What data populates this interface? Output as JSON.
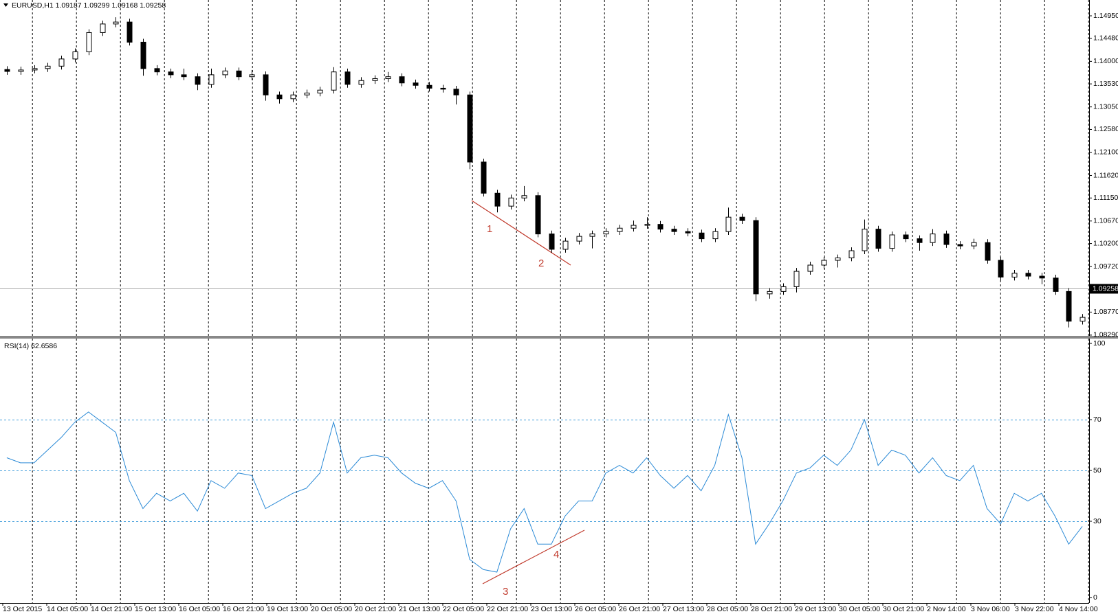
{
  "chart_data": [
    {
      "type": "candlestick",
      "title": "EURUSD,H1  1.09187 1.09299 1.09168 1.09258",
      "open": [
        1.1383,
        1.1379,
        1.1382,
        1.1385,
        1.139,
        1.1405,
        1.142,
        1.146,
        1.1478,
        1.1482,
        1.144,
        1.1385,
        1.1378,
        1.1372,
        1.1368,
        1.1352,
        1.1372,
        1.138,
        1.1368,
        1.1372,
        1.133,
        1.1322,
        1.133,
        1.1334,
        1.134,
        1.1378,
        1.1352,
        1.136,
        1.1364,
        1.1368,
        1.1355,
        1.135,
        1.1344,
        1.1342,
        1.133,
        1.119,
        1.1125,
        1.1098,
        1.1115,
        1.112,
        1.104,
        1.1008,
        1.1025,
        1.1035,
        1.104,
        1.1045,
        1.1052,
        1.1058,
        1.106,
        1.105,
        1.1045,
        1.1042,
        1.103,
        1.1045,
        1.1075,
        1.1068,
        1.0915,
        1.092,
        1.093,
        1.0962,
        1.0975,
        1.0985,
        1.099,
        1.1005,
        1.105,
        1.101,
        1.1038,
        1.103,
        1.1022,
        1.104,
        1.1018,
        1.1015,
        1.1022,
        1.0985,
        1.095,
        1.0958,
        1.0952,
        1.0948,
        1.092,
        1.0858
      ],
      "high": [
        1.139,
        1.1389,
        1.1392,
        1.1397,
        1.1412,
        1.1427,
        1.1467,
        1.1485,
        1.1492,
        1.1489,
        1.1447,
        1.1392,
        1.1385,
        1.1385,
        1.1375,
        1.1385,
        1.1387,
        1.1387,
        1.1382,
        1.1379,
        1.1337,
        1.1337,
        1.1341,
        1.1347,
        1.1388,
        1.1385,
        1.1367,
        1.1371,
        1.1378,
        1.1375,
        1.1362,
        1.1357,
        1.1351,
        1.1349,
        1.1337,
        1.1197,
        1.1132,
        1.1122,
        1.114,
        1.1127,
        1.1047,
        1.1032,
        1.1042,
        1.1047,
        1.1052,
        1.1059,
        1.1068,
        1.1075,
        1.1067,
        1.1057,
        1.1052,
        1.1049,
        1.1052,
        1.1095,
        1.1082,
        1.1075,
        1.0927,
        1.0937,
        1.0969,
        1.0982,
        1.0992,
        1.0997,
        1.1012,
        1.107,
        1.1057,
        1.1045,
        1.1045,
        1.1037,
        1.105,
        1.1047,
        1.1025,
        1.103,
        1.1029,
        1.0992,
        1.0965,
        1.0965,
        1.0959,
        1.0955,
        1.0927,
        1.0873
      ],
      "low": [
        1.1372,
        1.1372,
        1.1375,
        1.1378,
        1.1383,
        1.1398,
        1.1413,
        1.1453,
        1.1471,
        1.1433,
        1.137,
        1.1371,
        1.1365,
        1.1361,
        1.134,
        1.1345,
        1.1365,
        1.1361,
        1.1361,
        1.1318,
        1.1312,
        1.1315,
        1.1323,
        1.1327,
        1.1333,
        1.1345,
        1.1345,
        1.1353,
        1.1357,
        1.1348,
        1.1343,
        1.1337,
        1.1335,
        1.131,
        1.1175,
        1.1118,
        1.1085,
        1.1091,
        1.1108,
        1.1033,
        1.1001,
        1.1001,
        1.1018,
        1.101,
        1.1033,
        1.1038,
        1.1045,
        1.1051,
        1.1043,
        1.1038,
        1.1035,
        1.1023,
        1.1023,
        1.1038,
        1.1061,
        1.09,
        1.0905,
        1.0913,
        1.0918,
        1.0955,
        1.0968,
        1.097,
        1.0983,
        1.0998,
        1.1003,
        1.1003,
        1.1023,
        1.1005,
        1.1015,
        1.1011,
        1.1008,
        1.1008,
        1.0978,
        1.0943,
        1.0943,
        1.0945,
        1.0935,
        1.0913,
        1.0845,
        1.0851
      ],
      "close": [
        1.1379,
        1.1382,
        1.1385,
        1.139,
        1.1405,
        1.142,
        1.146,
        1.1478,
        1.1482,
        1.144,
        1.1385,
        1.1378,
        1.1372,
        1.1368,
        1.1352,
        1.1372,
        1.138,
        1.1368,
        1.1372,
        1.133,
        1.1322,
        1.133,
        1.1334,
        1.134,
        1.1378,
        1.1352,
        1.136,
        1.1364,
        1.1368,
        1.1355,
        1.135,
        1.1344,
        1.1342,
        1.133,
        1.119,
        1.1125,
        1.1098,
        1.1115,
        1.112,
        1.104,
        1.1008,
        1.1025,
        1.1035,
        1.104,
        1.1045,
        1.1052,
        1.1058,
        1.106,
        1.105,
        1.1045,
        1.1042,
        1.103,
        1.1045,
        1.1075,
        1.1068,
        1.0915,
        1.092,
        1.093,
        1.0962,
        1.0975,
        1.0985,
        1.099,
        1.1005,
        1.105,
        1.101,
        1.1038,
        1.103,
        1.1022,
        1.104,
        1.1018,
        1.1015,
        1.1022,
        1.0985,
        1.095,
        1.0958,
        1.0952,
        1.0948,
        1.092,
        1.0858,
        1.0866
      ],
      "up_color": "#ffffff",
      "down_color": "#000000",
      "wick_color": "#000000",
      "ylim": [
        1.0826,
        1.1528
      ],
      "yticks": [
        {
          "value": 1.1495,
          "label": "1.14950"
        },
        {
          "value": 1.1448,
          "label": "1.14480"
        },
        {
          "value": 1.14,
          "label": "1.14000"
        },
        {
          "value": 1.1353,
          "label": "1.13530"
        },
        {
          "value": 1.1305,
          "label": "1.13050"
        },
        {
          "value": 1.1258,
          "label": "1.12580"
        },
        {
          "value": 1.121,
          "label": "1.12100"
        },
        {
          "value": 1.1162,
          "label": "1.11620"
        },
        {
          "value": 1.1115,
          "label": "1.11150"
        },
        {
          "value": 1.1067,
          "label": "1.10670"
        },
        {
          "value": 1.102,
          "label": "1.10200"
        },
        {
          "value": 1.0972,
          "label": "1.09720"
        },
        {
          "value": 1.0877,
          "label": "1.08770"
        },
        {
          "value": 1.0829,
          "label": "1.08290"
        }
      ],
      "last_price": {
        "value": 1.09258,
        "label": "1.09258"
      },
      "annotations": [
        "1",
        "2"
      ]
    },
    {
      "type": "line",
      "title": "RSI(14) 62.6586",
      "color": "#2b8ad6",
      "values": [
        55,
        53,
        53,
        58,
        63,
        69,
        73,
        69,
        65,
        46,
        35,
        41,
        38,
        41,
        34,
        46,
        43,
        49,
        48,
        35,
        38,
        41,
        43,
        49,
        69,
        49,
        55,
        56,
        55,
        49,
        45,
        43,
        46,
        38,
        15,
        11,
        10,
        27,
        35,
        21,
        21,
        32,
        38,
        38,
        49,
        52,
        49,
        55,
        48,
        43,
        48,
        42,
        52,
        72,
        55,
        21,
        29,
        38,
        49,
        51,
        56,
        52,
        58,
        70,
        52,
        58,
        56,
        49,
        55,
        48,
        46,
        52,
        35,
        29,
        41,
        38,
        41,
        32,
        21,
        28
      ],
      "ylim": [
        0,
        100
      ],
      "yticks": [
        100,
        70,
        50,
        30,
        0
      ],
      "levels": [
        70,
        50,
        30
      ],
      "level_color": "#3a9ad9",
      "annotations": [
        "3",
        "4"
      ],
      "xtick_labels": [
        "13 Oct 2015",
        "14 Oct 05:00",
        "14 Oct 21:00",
        "15 Oct 13:00",
        "16 Oct 05:00",
        "16 Oct 21:00",
        "19 Oct 13:00",
        "20 Oct 05:00",
        "20 Oct 21:00",
        "21 Oct 13:00",
        "22 Oct 05:00",
        "22 Oct 21:00",
        "23 Oct 13:00",
        "26 Oct 05:00",
        "26 Oct 21:00",
        "27 Oct 13:00",
        "28 Oct 05:00",
        "28 Oct 21:00",
        "29 Oct 13:00",
        "30 Oct 05:00",
        "30 Oct 21:00",
        "2 Nov 14:00",
        "3 Nov 06:00",
        "3 Nov 22:00",
        "4 Nov 14:00"
      ]
    }
  ]
}
